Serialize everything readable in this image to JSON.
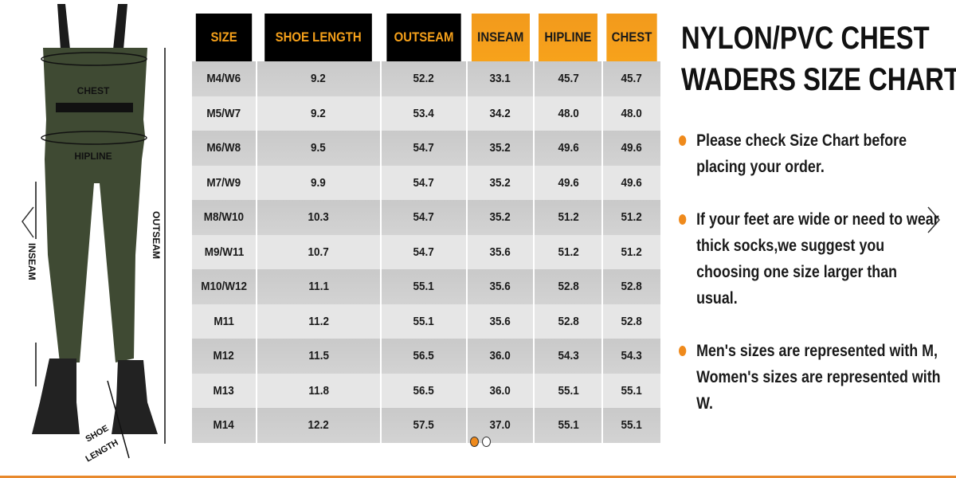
{
  "image_labels": {
    "chest": "CHEST",
    "hipline": "HIPLINE",
    "outseam": "OUTSEAM",
    "inseam": "INSEAM",
    "shoe_length_1": "SHOE",
    "shoe_length_2": "LENGTH"
  },
  "table": {
    "headers": [
      "SIZE",
      "SHOE LENGTH",
      "OUTSEAM",
      "INSEAM",
      "HIPLINE",
      "CHEST"
    ],
    "rows": [
      [
        "M4/W6",
        "9.2",
        "52.2",
        "33.1",
        "45.7",
        "45.7"
      ],
      [
        "M5/W7",
        "9.2",
        "53.4",
        "34.2",
        "48.0",
        "48.0"
      ],
      [
        "M6/W8",
        "9.5",
        "54.7",
        "35.2",
        "49.6",
        "49.6"
      ],
      [
        "M7/W9",
        "9.9",
        "54.7",
        "35.2",
        "49.6",
        "49.6"
      ],
      [
        "M8/W10",
        "10.3",
        "54.7",
        "35.2",
        "51.2",
        "51.2"
      ],
      [
        "M9/W11",
        "10.7",
        "54.7",
        "35.6",
        "51.2",
        "51.2"
      ],
      [
        "M10/W12",
        "11.1",
        "55.1",
        "35.6",
        "52.8",
        "52.8"
      ],
      [
        "M11",
        "11.2",
        "55.1",
        "35.6",
        "52.8",
        "52.8"
      ],
      [
        "M12",
        "11.5",
        "56.5",
        "36.0",
        "54.3",
        "54.3"
      ],
      [
        "M13",
        "11.8",
        "56.5",
        "36.0",
        "55.1",
        "55.1"
      ],
      [
        "M14",
        "12.2",
        "57.5",
        "37.0",
        "55.1",
        "55.1"
      ]
    ]
  },
  "title": {
    "line1": "NYLON/PVC CHEST",
    "line2": "WADERS SIZE CHART"
  },
  "bullets": [
    "Please check Size Chart before placing your order.",
    "If your feet are wide or need to wear thick socks,we suggest you choosing one size larger than usual.",
    "Men's sizes are represented with M, Women's sizes are represented with W."
  ],
  "carousel": {
    "slide_count": 2,
    "active_index": 0
  },
  "colors": {
    "accent": "#ef8a1c",
    "header_dark": "#000000",
    "header_text": "#f5a01a",
    "waders": "#3f4a33"
  }
}
